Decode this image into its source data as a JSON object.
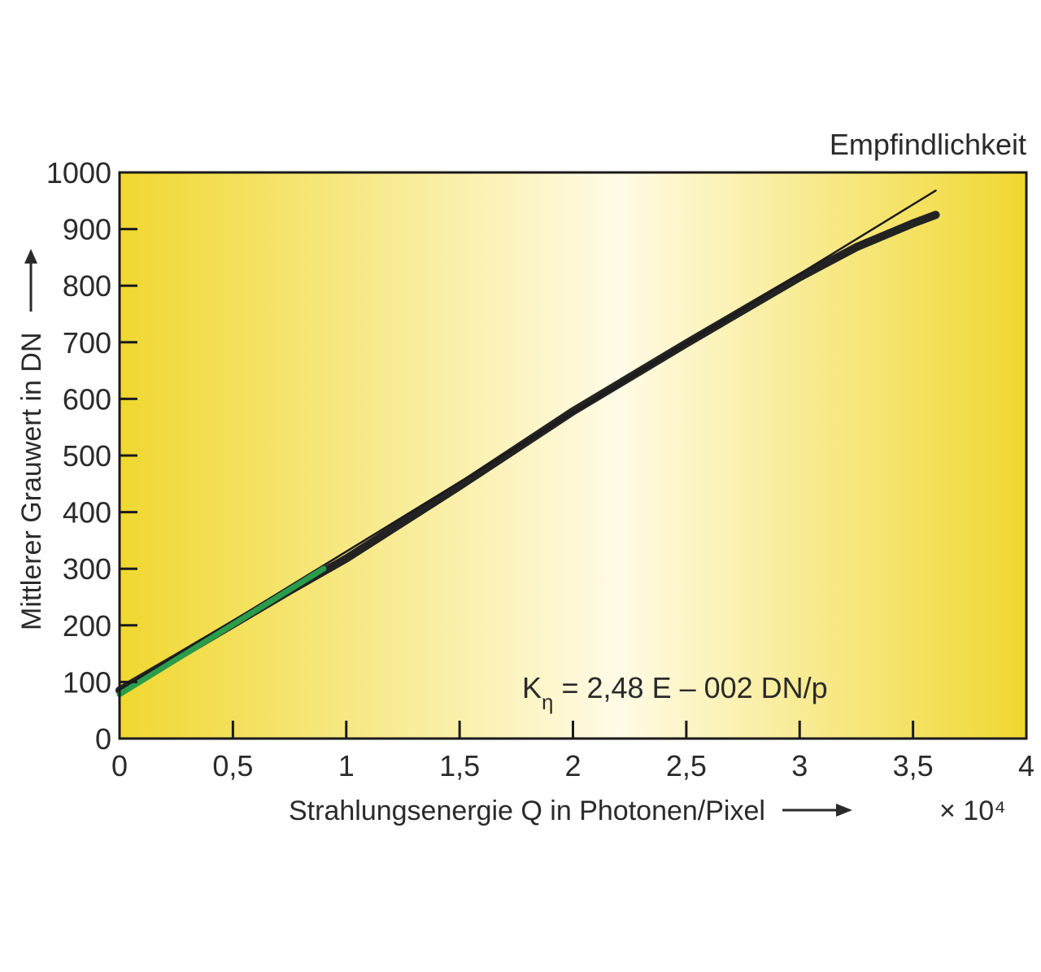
{
  "chart_data": {
    "type": "line",
    "title": "Empfindlichkeit",
    "xlabel": "Strahlungsenergie Q in Photonen/Pixel",
    "ylabel": "Mittlerer Grauwert in DN",
    "x_multiplier": "× 10⁴",
    "xlim": [
      0,
      4
    ],
    "ylim": [
      0,
      1000
    ],
    "x_ticks": [
      0,
      0.5,
      1,
      1.5,
      2,
      2.5,
      3,
      3.5,
      4
    ],
    "x_tick_labels": [
      "0",
      "0,5",
      "1",
      "1,5",
      "2",
      "2,5",
      "3",
      "3,5",
      "4"
    ],
    "y_ticks": [
      0,
      100,
      200,
      300,
      400,
      500,
      600,
      700,
      800,
      900,
      1000
    ],
    "y_tick_labels": [
      "0",
      "100",
      "200",
      "300",
      "400",
      "500",
      "600",
      "700",
      "800",
      "900",
      "1000"
    ],
    "grid": false,
    "background_gradient": [
      "#f0d830",
      "#fffbe6",
      "#f0d830"
    ],
    "annotation": {
      "main": "K",
      "subscript": "η",
      "rest": " = 2,48 E – 002 DN/p"
    },
    "series": [
      {
        "role": "measured",
        "color": "#222222",
        "x": [
          0,
          0.25,
          0.5,
          0.75,
          1.0,
          1.5,
          2.0,
          2.5,
          3.0,
          3.25,
          3.5,
          3.6
        ],
        "y": [
          85,
          143,
          202,
          261,
          318,
          446,
          578,
          698,
          815,
          868,
          910,
          925
        ]
      },
      {
        "role": "linear fit",
        "color": "#1a1a1a",
        "x": [
          0,
          3.6
        ],
        "y": [
          85,
          968
        ]
      },
      {
        "role": "fit range",
        "color": "#2a9d4a",
        "x": [
          0,
          0.9
        ],
        "y": [
          78,
          300
        ]
      }
    ]
  }
}
